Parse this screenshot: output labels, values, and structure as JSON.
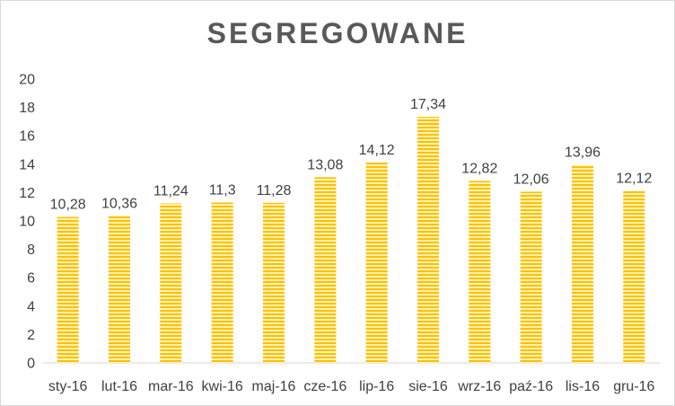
{
  "chart_data": {
    "type": "bar",
    "title": "SEGREGOWANE",
    "xlabel": "",
    "ylabel": "",
    "categories": [
      "sty-16",
      "lut-16",
      "mar-16",
      "kwi-16",
      "maj-16",
      "cze-16",
      "lip-16",
      "sie-16",
      "wrz-16",
      "paź-16",
      "lis-16",
      "gru-16"
    ],
    "values": [
      10.28,
      10.36,
      11.24,
      11.3,
      11.28,
      13.08,
      14.12,
      17.34,
      12.82,
      12.06,
      13.96,
      12.12
    ],
    "value_labels": [
      "10,28",
      "10,36",
      "11,24",
      "11,3",
      "11,28",
      "13,08",
      "14,12",
      "17,34",
      "12,82",
      "12,06",
      "13,96",
      "12,12"
    ],
    "yticks": [
      "0",
      "2",
      "4",
      "6",
      "8",
      "10",
      "12",
      "14",
      "16",
      "18",
      "20"
    ],
    "ylim": [
      0,
      20
    ],
    "grid": false,
    "legend": "none",
    "bar_color": "#ffc000",
    "bar_stripe_color": "#fff2b3"
  }
}
